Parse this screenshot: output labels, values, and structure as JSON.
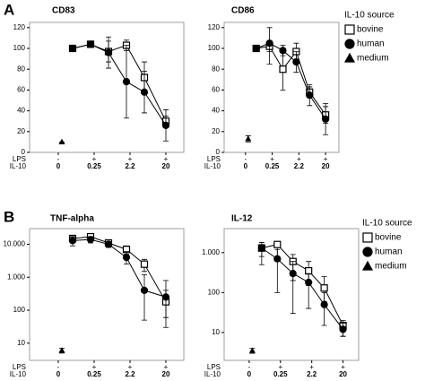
{
  "figure": {
    "row_labels": [
      "A",
      "B"
    ]
  },
  "chart_data": [
    {
      "type": "line",
      "title": "CD83",
      "log": false,
      "ylim": [
        0,
        125
      ],
      "yticks": [
        0,
        20,
        40,
        60,
        80,
        100,
        120
      ],
      "xlim": [
        -0.8,
        3.5
      ],
      "xticks": [
        {
          "value": 0,
          "label": "0"
        },
        {
          "value": 1,
          "label": "0.25"
        },
        {
          "value": 2,
          "label": "2.2"
        },
        {
          "value": 3,
          "label": "20"
        }
      ],
      "lps": [
        "-",
        "+",
        "+",
        "+"
      ],
      "axis_rows": [
        "LPS",
        "IL-10"
      ],
      "legend_title": "IL-10 source",
      "series": [
        {
          "name": "bovine",
          "marker": "square",
          "color": "#000000",
          "x": [
            0.4,
            0.9,
            1.4,
            1.9,
            2.4,
            3.0
          ],
          "values": [
            100,
            104,
            97,
            103,
            72,
            30
          ],
          "lower": [
            100,
            101,
            87,
            98,
            57,
            25
          ],
          "upper": [
            100,
            107,
            107,
            108,
            87,
            35
          ]
        },
        {
          "name": "human",
          "marker": "circle",
          "color": "#000000",
          "x": [
            0.4,
            0.9,
            1.4,
            1.9,
            2.4,
            3.0
          ],
          "values": [
            100,
            104,
            96,
            68,
            58,
            26
          ],
          "lower": [
            100,
            101,
            81,
            33,
            38,
            11
          ],
          "upper": [
            100,
            107,
            111,
            103,
            78,
            41
          ]
        },
        {
          "name": "medium",
          "marker": "triangle",
          "color": "#000000",
          "x": [
            0.1
          ],
          "values": [
            10
          ],
          "lower": [
            10
          ],
          "upper": [
            10
          ]
        }
      ]
    },
    {
      "type": "line",
      "title": "CD86",
      "log": false,
      "ylim": [
        0,
        125
      ],
      "yticks": [
        0,
        20,
        40,
        60,
        80,
        100,
        120
      ],
      "xlim": [
        -0.8,
        3.5
      ],
      "xticks": [
        {
          "value": 0,
          "label": "0"
        },
        {
          "value": 1,
          "label": "0.25"
        },
        {
          "value": 2,
          "label": "2.2"
        },
        {
          "value": 3,
          "label": "20"
        }
      ],
      "lps": [
        "-",
        "+",
        "+",
        "+"
      ],
      "axis_rows": [
        "LPS",
        "IL-10"
      ],
      "series": [
        {
          "name": "bovine",
          "marker": "square",
          "color": "#000000",
          "x": [
            0.4,
            0.9,
            1.4,
            1.9,
            2.4,
            3.0
          ],
          "values": [
            100,
            102,
            80,
            97,
            58,
            36
          ],
          "lower": [
            100,
            97,
            60,
            89,
            53,
            28
          ],
          "upper": [
            100,
            107,
            100,
            105,
            63,
            44
          ]
        },
        {
          "name": "human",
          "marker": "circle",
          "color": "#000000",
          "x": [
            0.4,
            0.9,
            1.4,
            1.9,
            2.4,
            3.0
          ],
          "values": [
            100,
            105,
            98,
            87,
            55,
            32
          ],
          "lower": [
            100,
            85,
            93,
            77,
            45,
            17
          ],
          "upper": [
            100,
            120,
            103,
            97,
            65,
            47
          ]
        },
        {
          "name": "medium",
          "marker": "triangle",
          "color": "#000000",
          "x": [
            0.1
          ],
          "values": [
            13
          ],
          "lower": [
            10
          ],
          "upper": [
            16
          ]
        }
      ]
    },
    {
      "type": "line",
      "title": "TNF-alpha",
      "log": true,
      "ylim": [
        3,
        30000
      ],
      "yticks": [
        10,
        100,
        {
          "value": 1000,
          "label": "1.000"
        },
        {
          "value": 10000,
          "label": "10.000"
        }
      ],
      "xlim": [
        -0.8,
        3.5
      ],
      "xticks": [
        {
          "value": 0,
          "label": "0"
        },
        {
          "value": 1,
          "label": "0.25"
        },
        {
          "value": 2,
          "label": "2.2"
        },
        {
          "value": 3,
          "label": "20"
        }
      ],
      "lps": [
        "-",
        "+",
        "+",
        "+"
      ],
      "axis_rows": [
        "LPS",
        "IL-10"
      ],
      "series": [
        {
          "name": "bovine",
          "marker": "square",
          "color": "#000000",
          "x": [
            0.4,
            0.9,
            1.4,
            1.9,
            2.4,
            3.0
          ],
          "values": [
            15000,
            17000,
            11000,
            7000,
            2500,
            180
          ],
          "lower": [
            11000,
            14000,
            9000,
            5000,
            1500,
            60
          ],
          "upper": [
            19000,
            20000,
            13000,
            9000,
            3500,
            400
          ]
        },
        {
          "name": "human",
          "marker": "circle",
          "color": "#000000",
          "x": [
            0.4,
            0.9,
            1.4,
            1.9,
            2.4,
            3.0
          ],
          "values": [
            13000,
            14000,
            10000,
            4000,
            400,
            250
          ],
          "lower": [
            9000,
            11000,
            8000,
            2500,
            50,
            30
          ],
          "upper": [
            17000,
            17000,
            12000,
            6000,
            1200,
            800
          ]
        },
        {
          "name": "medium",
          "marker": "triangle",
          "color": "#000000",
          "x": [
            0.1
          ],
          "values": [
            6
          ],
          "lower": [
            5
          ],
          "upper": [
            7
          ]
        }
      ]
    },
    {
      "type": "line",
      "title": "IL-12",
      "log": true,
      "ylim": [
        2,
        4000
      ],
      "yticks": [
        10,
        100,
        {
          "value": 1000,
          "label": "1.000"
        }
      ],
      "xlim": [
        -0.8,
        3.5
      ],
      "xticks": [
        {
          "value": 0,
          "label": "0"
        },
        {
          "value": 1,
          "label": "0.25"
        },
        {
          "value": 2,
          "label": "2.2"
        },
        {
          "value": 3,
          "label": "20"
        }
      ],
      "lps": [
        "-",
        "+",
        "+",
        "+"
      ],
      "axis_rows": [
        "LPS",
        "IL-10"
      ],
      "legend_title": "IL-10 source",
      "series": [
        {
          "name": "bovine",
          "marker": "square",
          "color": "#000000",
          "x": [
            0.4,
            0.9,
            1.4,
            1.9,
            2.4,
            3.0
          ],
          "values": [
            1300,
            1600,
            600,
            350,
            130,
            15
          ],
          "lower": [
            500,
            700,
            200,
            150,
            60,
            8
          ],
          "upper": [
            1600,
            1900,
            900,
            600,
            250,
            20
          ]
        },
        {
          "name": "human",
          "marker": "circle",
          "color": "#000000",
          "x": [
            0.4,
            0.9,
            1.4,
            1.9,
            2.4,
            3.0
          ],
          "values": [
            1300,
            700,
            300,
            180,
            50,
            12
          ],
          "lower": [
            800,
            100,
            30,
            40,
            15,
            8
          ],
          "upper": [
            1800,
            1200,
            600,
            300,
            100,
            17
          ]
        },
        {
          "name": "medium",
          "marker": "triangle",
          "color": "#000000",
          "x": [
            0.1
          ],
          "values": [
            3.5
          ],
          "lower": [
            3
          ],
          "upper": [
            4
          ]
        }
      ]
    }
  ]
}
